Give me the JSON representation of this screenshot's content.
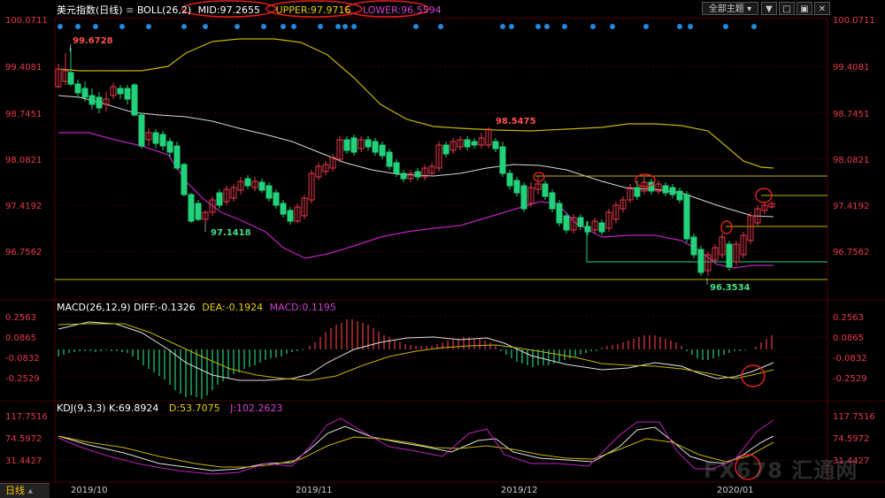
{
  "panels": {
    "price": {
      "name": "美元指数",
      "period": "日线",
      "indicator": "BOLL(26,2)",
      "mid": "MID:97.2655",
      "upper": "UPPER:97.9716",
      "lower": "LOWER:96.5594",
      "ticks": [
        "100.0711",
        "99.4081",
        "98.7451",
        "98.0821",
        "97.4192",
        "96.7562"
      ],
      "annotations": [
        "99.6728",
        "98.5475",
        "97.1418",
        "96.3534"
      ]
    },
    "macd": {
      "title": "MACD(26,12,9)",
      "diff": "DIFF:-0.1326",
      "dea": "DEA:-0.1924",
      "macd": "MACD:0.1195",
      "ticks": [
        "0.2563",
        "0.0865",
        "-0.0832",
        "-0.2529"
      ]
    },
    "kdj": {
      "title": "KDJ(9,3,3)",
      "k": "K:69.8924",
      "d": "D:53.7075",
      "j": "J:102.2623",
      "ticks": [
        "117.7516",
        "74.5972",
        "31.4427"
      ]
    }
  },
  "toolbar": {
    "theme_label": "全部主题"
  },
  "bottom_tab": "日线",
  "x_labels": [
    "2019/10",
    "2019/11",
    "2019/12",
    "2020/01"
  ],
  "watermark": "FX678 汇通网",
  "colors": {
    "background": "#000000",
    "up": "#e8394a",
    "down": "#22d27a",
    "mid": "#d8d8d8",
    "upper": "#c8b400",
    "lower": "#c020c0",
    "grid": "#8b0000",
    "circle": "#e02020"
  },
  "chart_data": {
    "type": "line",
    "x": [
      "2019/10",
      "2019/11",
      "2019/12",
      "2020/01"
    ],
    "price_range": [
      96.35,
      100.07
    ],
    "series": [
      {
        "name": "MID",
        "values": [
          98.4,
          97.8,
          97.6,
          97.27
        ]
      },
      {
        "name": "UPPER",
        "values": [
          99.7,
          98.7,
          98.1,
          97.97
        ]
      },
      {
        "name": "LOWER",
        "values": [
          97.4,
          96.8,
          97.1,
          96.56
        ]
      }
    ],
    "macd": {
      "range": [
        -0.2529,
        0.2563
      ]
    },
    "kdj": {
      "range": [
        31.4427,
        117.7516
      ]
    }
  }
}
